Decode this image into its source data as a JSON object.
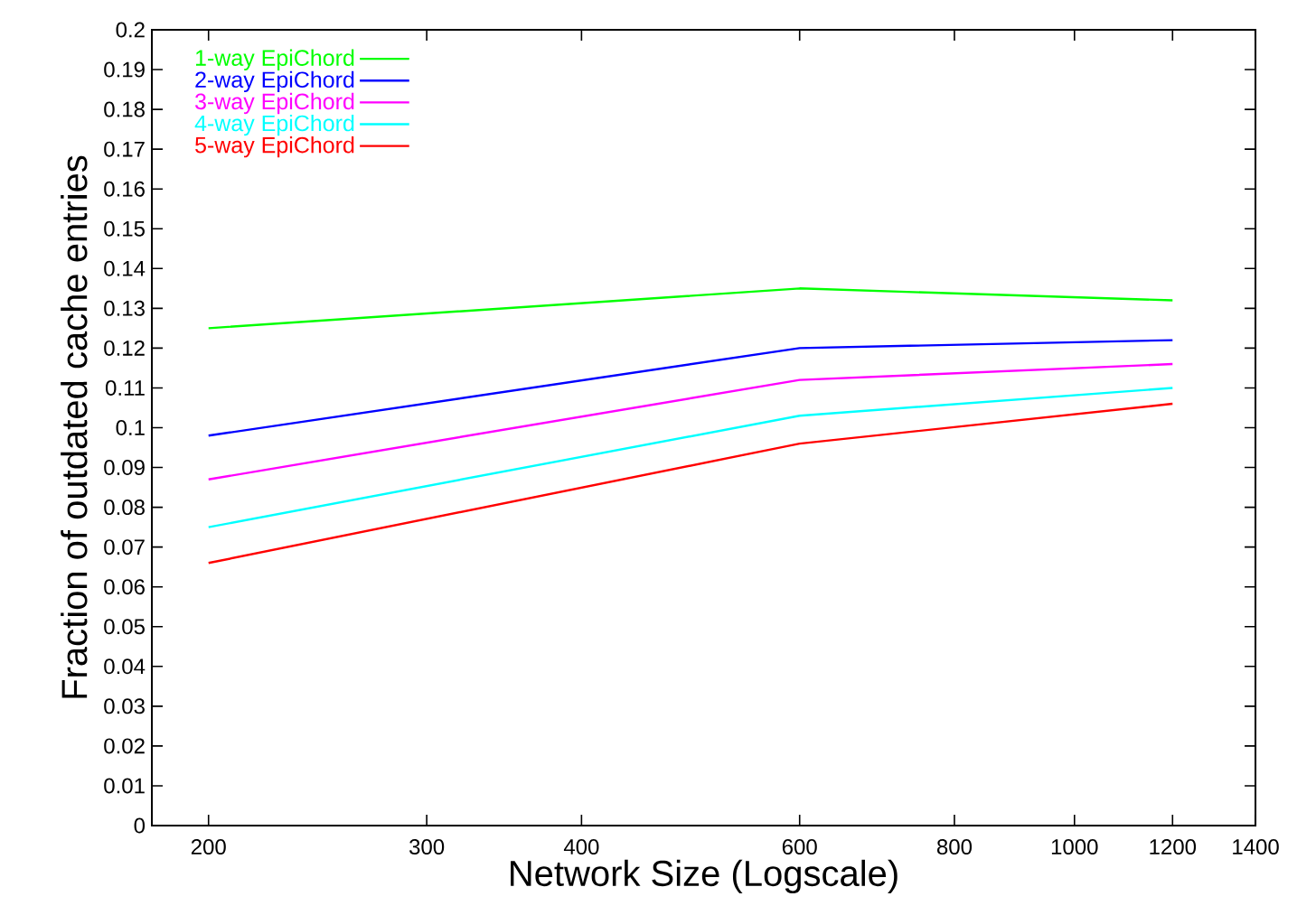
{
  "chart_data": {
    "type": "line",
    "xlabel": "Network Size (Logscale)",
    "ylabel": "Fraction of outdated cache entries",
    "x": [
      200,
      600,
      1200
    ],
    "series": [
      {
        "name": "1-way EpiChord",
        "color": "#00ff00",
        "values": [
          0.125,
          0.135,
          0.132
        ]
      },
      {
        "name": "2-way EpiChord",
        "color": "#0000ff",
        "values": [
          0.098,
          0.12,
          0.122
        ]
      },
      {
        "name": "3-way EpiChord",
        "color": "#ff00ff",
        "values": [
          0.087,
          0.112,
          0.116
        ]
      },
      {
        "name": "4-way EpiChord",
        "color": "#00ffff",
        "values": [
          0.075,
          0.103,
          0.11
        ]
      },
      {
        "name": "5-way EpiChord",
        "color": "#ff0000",
        "values": [
          0.066,
          0.096,
          0.106
        ]
      }
    ],
    "log": "x",
    "xlim": [
      180,
      1400
    ],
    "ylim": [
      0,
      0.2
    ],
    "xticks": [
      200,
      300,
      400,
      600,
      800,
      1000,
      1200,
      1400
    ],
    "yticks": [
      0,
      0.01,
      0.02,
      0.03,
      0.04,
      0.05,
      0.06,
      0.07,
      0.08,
      0.09,
      0.1,
      0.11,
      0.12,
      0.13,
      0.14,
      0.15,
      0.16,
      0.17,
      0.18,
      0.19,
      0.2
    ],
    "grid": false,
    "legend": "top left",
    "marker": "none",
    "line_style": "solid"
  }
}
